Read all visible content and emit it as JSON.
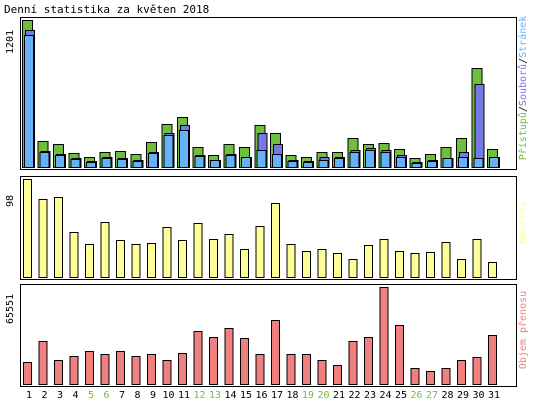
{
  "title": "Denní statistika za květen 2018",
  "chart_data": [
    {
      "type": "bar",
      "categories": [
        "1",
        "2",
        "3",
        "4",
        "5",
        "6",
        "7",
        "8",
        "9",
        "10",
        "11",
        "12",
        "13",
        "14",
        "15",
        "16",
        "17",
        "18",
        "19",
        "20",
        "21",
        "22",
        "23",
        "24",
        "25",
        "26",
        "27",
        "28",
        "29",
        "30",
        "31"
      ],
      "weekend_days": [
        "5",
        "6",
        "12",
        "13",
        "19",
        "20",
        "26",
        "27"
      ],
      "ymax_label": "1201",
      "ylim": [
        0,
        1201
      ],
      "legend": [
        "Přístupů",
        "Souborů",
        "Stránek"
      ],
      "legend_separator": "/",
      "series": [
        {
          "name": "Přístupů",
          "color": "#6fbf3f",
          "values": [
            1201,
            215,
            185,
            115,
            80,
            120,
            130,
            110,
            205,
            355,
            410,
            160,
            100,
            185,
            160,
            340,
            280,
            95,
            85,
            125,
            125,
            235,
            190,
            200,
            145,
            70,
            105,
            160,
            235,
            810,
            145
          ]
        },
        {
          "name": "Souborů",
          "color": "#7777e8",
          "values": [
            1120,
            130,
            110,
            75,
            45,
            80,
            75,
            55,
            125,
            275,
            340,
            100,
            60,
            105,
            85,
            280,
            190,
            60,
            45,
            80,
            85,
            135,
            155,
            140,
            95,
            40,
            55,
            75,
            125,
            680,
            85
          ]
        },
        {
          "name": "Stránek",
          "color": "#66b2f8",
          "values": [
            1080,
            120,
            100,
            65,
            40,
            70,
            65,
            50,
            115,
            265,
            300,
            90,
            55,
            95,
            80,
            140,
            110,
            50,
            40,
            60,
            70,
            125,
            140,
            120,
            85,
            35,
            50,
            70,
            80,
            70,
            80
          ]
        }
      ]
    },
    {
      "type": "bar",
      "categories": [
        "1",
        "2",
        "3",
        "4",
        "5",
        "6",
        "7",
        "8",
        "9",
        "10",
        "11",
        "12",
        "13",
        "14",
        "15",
        "16",
        "17",
        "18",
        "19",
        "20",
        "21",
        "22",
        "23",
        "24",
        "25",
        "26",
        "27",
        "28",
        "29",
        "30",
        "31"
      ],
      "ymax_label": "98",
      "ylim": [
        0,
        98
      ],
      "legend": [
        "Návštěv"
      ],
      "series": [
        {
          "name": "Návštěv",
          "color": "#ffff99",
          "values": [
            98,
            78,
            80,
            45,
            33,
            55,
            37,
            33,
            34,
            50,
            37,
            54,
            38,
            43,
            28,
            51,
            74,
            33,
            26,
            28,
            24,
            18,
            32,
            38,
            26,
            24,
            25,
            35,
            18,
            38,
            15
          ]
        }
      ]
    },
    {
      "type": "bar",
      "categories": [
        "1",
        "2",
        "3",
        "4",
        "5",
        "6",
        "7",
        "8",
        "9",
        "10",
        "11",
        "12",
        "13",
        "14",
        "15",
        "16",
        "17",
        "18",
        "19",
        "20",
        "21",
        "22",
        "23",
        "24",
        "25",
        "26",
        "27",
        "28",
        "29",
        "30",
        "31"
      ],
      "ymax_label": "65551",
      "ylim": [
        0,
        65551
      ],
      "legend": [
        "Objem přenosu"
      ],
      "series": [
        {
          "name": "Objem přenosu",
          "color": "#f08080",
          "values": [
            15000,
            29000,
            16000,
            19000,
            22000,
            20000,
            22000,
            19000,
            20000,
            16000,
            21000,
            36000,
            32000,
            38000,
            31000,
            20000,
            43000,
            20000,
            20000,
            16000,
            13000,
            29000,
            32000,
            65551,
            40000,
            11000,
            9000,
            11000,
            16000,
            18000,
            33000
          ]
        }
      ]
    }
  ]
}
